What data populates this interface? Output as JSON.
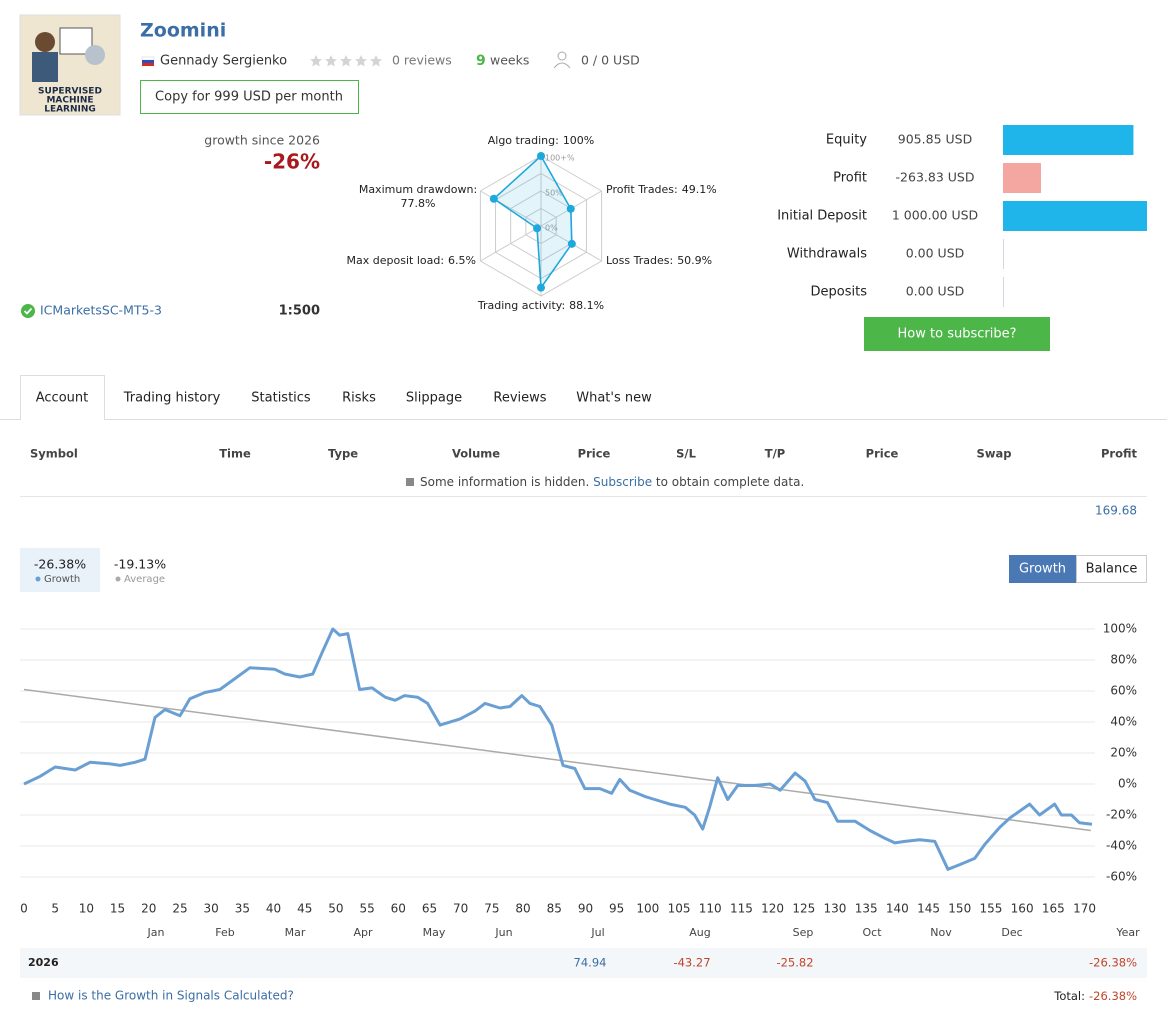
{
  "header": {
    "title": "Zoomini",
    "author": "Gennady Sergienko",
    "reviews": "0 reviews",
    "weeks_value": "9",
    "weeks_unit": "weeks",
    "subscribers": "0 / 0 USD",
    "copy_button": "Copy for 999 USD per month",
    "avatar_text": [
      "SUPERVISED",
      "MACHINE",
      "LEARNING"
    ]
  },
  "summary": {
    "growth_label": "growth since 2026",
    "growth": "-26%",
    "broker": "ICMarketsSC-MT5-3",
    "leverage": "1:500"
  },
  "radar": {
    "type": "radar",
    "rlim": [
      0,
      100
    ],
    "rticks": [
      {
        "value": 100,
        "label": "100+%"
      },
      {
        "value": 50,
        "label": "50%"
      },
      {
        "value": 0,
        "label": "0%"
      }
    ],
    "color": "#1fa8dc",
    "axes": [
      {
        "name": "Algo trading:",
        "value": 100,
        "value_label": "100%"
      },
      {
        "name": "Profit Trades:",
        "value": 49.1,
        "value_label": "49.1%"
      },
      {
        "name": "Loss Trades:",
        "value": 50.9,
        "value_label": "50.9%"
      },
      {
        "name": "Trading activity:",
        "value": 88.1,
        "value_label": "88.1%"
      },
      {
        "name": "Max deposit load:",
        "value": 6.5,
        "value_label": "6.5%"
      },
      {
        "name": "Maximum drawdown:",
        "value": 77.8,
        "value_label": "77.8%"
      }
    ]
  },
  "account": {
    "type": "bar",
    "orientation": "horizontal",
    "categories": [
      "Equity",
      "Profit",
      "Initial Deposit",
      "Withdrawals",
      "Deposits"
    ],
    "values": [
      905.85,
      -263.83,
      1000,
      0,
      0
    ],
    "value_labels": [
      "905.85 USD",
      "-263.83 USD",
      "1 000.00 USD",
      "0.00 USD",
      "0.00 USD"
    ],
    "colors": [
      "#1fb5ea",
      "#f4a6a0",
      "#1fb5ea",
      "#cfd8e0",
      "#cfd8e0"
    ],
    "xlim": [
      0,
      1000
    ]
  },
  "subscribe_button": "How to subscribe?",
  "tabs": [
    "Account",
    "Trading history",
    "Statistics",
    "Risks",
    "Slippage",
    "Reviews",
    "What's new"
  ],
  "table": {
    "columns": [
      "Symbol",
      "Time",
      "Type",
      "Volume",
      "Price",
      "S/L",
      "T/P",
      "Price",
      "Swap",
      "Profit"
    ],
    "notice": "Some information is hidden.",
    "notice_link": "Subscribe",
    "notice_end": "to obtain complete data.",
    "total": "169.68"
  },
  "chart_data": {
    "type": "line",
    "legend": [
      {
        "value": "-26.38%",
        "label": "Growth"
      },
      {
        "value": "-19.13%",
        "label": "Average"
      }
    ],
    "buttons": [
      "Growth",
      "Balance"
    ],
    "x": [
      0,
      2.6,
      5,
      8.2,
      10.6,
      13.8,
      15.4,
      17.8,
      19.4,
      21,
      22.6,
      25,
      26.6,
      29,
      31.4,
      33.8,
      36.2,
      40.2,
      41.8,
      44.2,
      46.3,
      47.8,
      49.5,
      50.6,
      51.9,
      53.8,
      55.8,
      57.9,
      59.5,
      61,
      63.1,
      64.7,
      66.7,
      69.9,
      72.3,
      73.9,
      76.3,
      77.9,
      79.8,
      81.1,
      82.7,
      84.6,
      86.4,
      88.3,
      89.9,
      92.3,
      94.2,
      95.5,
      97.1,
      99.5,
      101.1,
      103.5,
      106,
      107.5,
      108.8,
      109.9,
      111.2,
      112.8,
      114.4,
      117.1,
      119.6,
      121.2,
      123.6,
      125.2,
      126.8,
      128.8,
      130.4,
      133.2,
      135.6,
      138,
      139.6,
      141.2,
      143.6,
      146,
      148.1,
      150,
      152.4,
      154,
      156.4,
      158,
      161.2,
      162.8,
      165.2,
      166.3,
      167.9,
      169.2,
      171.2
    ],
    "series": [
      {
        "name": "Growth",
        "color": "#6a9fd4",
        "values": [
          0,
          5,
          11,
          9,
          14,
          13,
          12,
          14,
          16,
          43,
          48,
          44,
          55,
          59,
          61,
          68,
          75,
          74,
          71,
          69,
          71,
          85,
          100,
          96,
          97,
          61,
          62,
          56,
          54,
          57,
          56,
          52,
          38,
          42,
          47,
          52,
          49,
          50,
          57,
          52,
          50,
          38,
          12,
          10,
          -3,
          -3,
          -6,
          3,
          -4,
          -8,
          -10,
          -13,
          -15,
          -20,
          -29,
          -15,
          4,
          -10,
          -1,
          -1,
          0,
          -4,
          7,
          2,
          -10,
          -12,
          -24,
          -24,
          -30,
          -35,
          -38,
          -37,
          -36,
          -37,
          -55,
          -52,
          -48,
          -39,
          -28,
          -22,
          -13,
          -20,
          -13,
          -20,
          -20,
          -25,
          -26
        ]
      },
      {
        "name": "Average",
        "color": "#aaaaaa",
        "x": [
          0,
          171
        ],
        "values": [
          61,
          -30
        ]
      }
    ],
    "xlim": [
      0,
      172
    ],
    "xticks": [
      0,
      5,
      10,
      15,
      20,
      25,
      30,
      35,
      40,
      45,
      50,
      55,
      60,
      65,
      70,
      75,
      80,
      85,
      90,
      95,
      100,
      105,
      110,
      115,
      120,
      125,
      130,
      135,
      140,
      145,
      150,
      155,
      160,
      165,
      170
    ],
    "ylim": [
      -60,
      100
    ],
    "yticks": [
      {
        "value": 100,
        "label": "100%"
      },
      {
        "value": 80,
        "label": "80%"
      },
      {
        "value": 60,
        "label": "60%"
      },
      {
        "value": 40,
        "label": "40%"
      },
      {
        "value": 20,
        "label": "20%"
      },
      {
        "value": 0,
        "label": "0%"
      },
      {
        "value": -20,
        "label": "-20%"
      },
      {
        "value": -40,
        "label": "-40%"
      },
      {
        "value": -60,
        "label": "-60%"
      }
    ],
    "grid": true
  },
  "yearly": {
    "columns": [
      "Jan",
      "Feb",
      "Mar",
      "Apr",
      "May",
      "Jun",
      "Jul",
      "Aug",
      "Sep",
      "Oct",
      "Nov",
      "Dec",
      "Year"
    ],
    "rows": [
      {
        "year": "2026",
        "values": [
          null,
          null,
          null,
          null,
          null,
          null,
          "74.94",
          "-43.27",
          "-25.82",
          null,
          null,
          null,
          "-26.38%"
        ]
      }
    ]
  },
  "footer": {
    "link": "How is the Growth in Signals Calculated?",
    "total_label": "Total:",
    "total": "-26.38%"
  }
}
